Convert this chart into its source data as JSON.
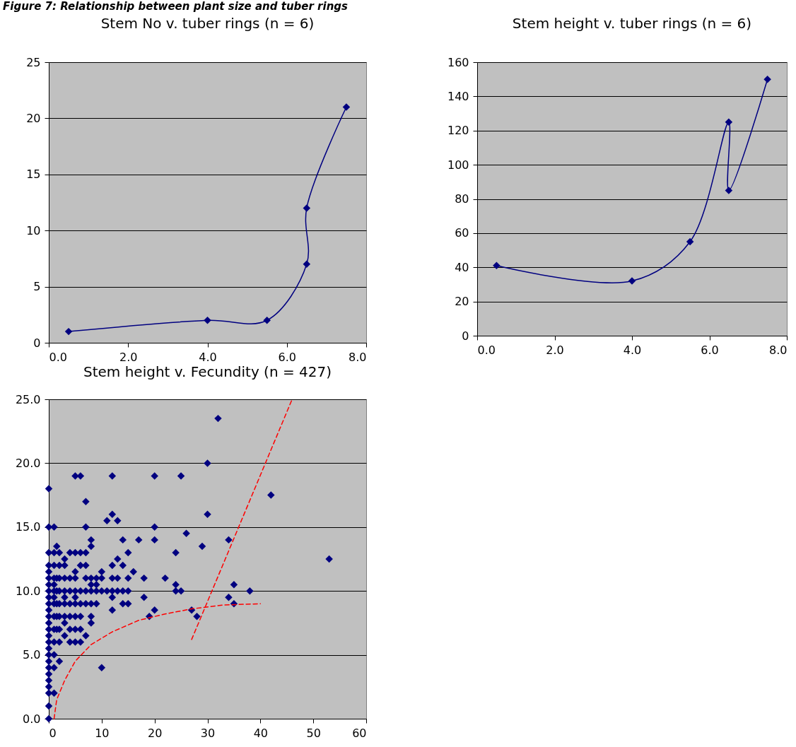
{
  "chart_data": [
    {
      "type": "line",
      "title": "Stem No v. tuber rings (n = 6)",
      "annotations": [
        "Figure 7: Relationship between plant size and tuber rings"
      ],
      "marker": "diamond",
      "grid": "y",
      "x": [
        0.5,
        4,
        5.5,
        6.5,
        6.5,
        7.5
      ],
      "series": [
        {
          "color": "#000080",
          "values": [
            1,
            2,
            2,
            7,
            12,
            21
          ]
        }
      ],
      "xlim": [
        0,
        8
      ],
      "xticks": [
        {
          "value": 0,
          "label": "0.0"
        },
        {
          "value": 2,
          "label": "2.0"
        },
        {
          "value": 4,
          "label": "4.0"
        },
        {
          "value": 6,
          "label": "6.0"
        },
        {
          "value": 8,
          "label": "8.0"
        }
      ],
      "ylim": [
        0,
        25
      ],
      "yticks": [
        0,
        5,
        10,
        15,
        20,
        25
      ]
    },
    {
      "type": "line",
      "title": "Stem height v. tuber rings (n = 6)",
      "marker": "diamond",
      "grid": "y",
      "x": [
        0.5,
        4,
        5.5,
        6.5,
        6.5,
        7.5
      ],
      "series": [
        {
          "color": "#000080",
          "values": [
            41,
            32,
            55,
            125,
            85,
            150
          ]
        }
      ],
      "xlim": [
        0,
        8
      ],
      "xticks": [
        {
          "value": 0,
          "label": "0.0"
        },
        {
          "value": 2,
          "label": "2.0"
        },
        {
          "value": 4,
          "label": "4.0"
        },
        {
          "value": 6,
          "label": "6.0"
        },
        {
          "value": 8,
          "label": "8.0"
        }
      ],
      "ylim": [
        0,
        160
      ],
      "yticks": [
        0,
        20,
        40,
        60,
        80,
        100,
        120,
        140,
        160
      ]
    },
    {
      "type": "scatter",
      "title": "Stem height v. Fecundity (n = 427)",
      "marker": "diamond",
      "grid": "y",
      "series": [
        {
          "color": "#000080",
          "x": [
            0,
            0,
            0,
            0,
            0,
            0,
            0,
            0,
            0,
            0,
            0,
            0,
            0,
            0,
            0,
            0,
            0,
            0,
            0,
            0,
            0,
            0,
            0,
            0,
            0,
            0,
            1,
            1,
            1,
            1,
            1,
            1,
            1,
            1,
            1,
            1,
            1,
            1,
            1,
            1,
            1.5,
            1.5,
            1.5,
            1.5,
            1.5,
            1.5,
            2,
            2,
            2,
            2,
            2,
            2,
            2,
            2,
            2,
            3,
            3,
            3,
            3,
            3,
            3,
            3,
            3,
            3,
            4,
            4,
            4,
            4,
            4,
            4,
            4,
            5,
            5,
            5,
            5,
            5,
            5,
            5,
            5,
            5,
            5,
            6,
            6,
            6,
            6,
            6,
            6,
            6,
            6,
            7,
            7,
            7,
            7,
            7,
            7,
            7,
            7,
            8,
            8,
            8,
            8,
            8,
            8,
            8,
            8,
            9,
            9,
            9,
            9,
            10,
            10,
            10,
            10,
            11,
            11,
            12,
            12,
            12,
            12,
            12,
            12,
            12,
            13,
            13,
            13,
            13,
            14,
            14,
            14,
            14,
            15,
            15,
            15,
            15,
            16,
            17,
            18,
            18,
            19,
            20,
            20,
            20,
            20,
            22,
            24,
            24,
            24,
            25,
            25,
            26,
            27,
            28,
            29,
            30,
            30,
            32,
            34,
            34,
            35,
            35,
            38,
            42,
            53
          ],
          "values": [
            0,
            1,
            2,
            2.5,
            3,
            3.5,
            4,
            4.5,
            5,
            5.5,
            6,
            6.5,
            7,
            7.5,
            8,
            8.5,
            9,
            9.5,
            10,
            10.5,
            11,
            11.5,
            12,
            13,
            15,
            18,
            2,
            4,
            5,
            6,
            7,
            8,
            9,
            9.5,
            10,
            10.5,
            11,
            12,
            13,
            15,
            7,
            8,
            9,
            10,
            11,
            13.5,
            4.5,
            6,
            7,
            8,
            9,
            10,
            11,
            12,
            13,
            6.5,
            7.5,
            8,
            9,
            9.5,
            10,
            11,
            12,
            12.5,
            6,
            7,
            8,
            9,
            10,
            11,
            13,
            6,
            7,
            8,
            9,
            9.5,
            10,
            11,
            11.5,
            13,
            19,
            6,
            7,
            8,
            9,
            10,
            12,
            13,
            19,
            6.5,
            9,
            10,
            11,
            12,
            13,
            15,
            17,
            7.5,
            8,
            9,
            10,
            10.5,
            11,
            13.5,
            14,
            9,
            10,
            10.5,
            11,
            4,
            10,
            11,
            11.5,
            10,
            15.5,
            8.5,
            9.5,
            10,
            11,
            12,
            16,
            19,
            10,
            11,
            12.5,
            15.5,
            9,
            10,
            12,
            14,
            9,
            10,
            11,
            13,
            11.5,
            14,
            9.5,
            11,
            8,
            8.5,
            14,
            15,
            19,
            11,
            10,
            10.5,
            13,
            10,
            19,
            14.5,
            8.5,
            8,
            13.5,
            16,
            20,
            23.5,
            9.5,
            14,
            9,
            10.5,
            10,
            17.5,
            12.5
          ]
        },
        {
          "type": "line",
          "color": "#ff0000",
          "line_style": "dashed",
          "marker": "none",
          "x": [
            1,
            1.5,
            3,
            5,
            8,
            12,
            17,
            22,
            27,
            33,
            40
          ],
          "values": [
            0,
            1.5,
            3,
            4.5,
            5.8,
            6.8,
            7.7,
            8.2,
            8.6,
            8.9,
            9
          ]
        },
        {
          "type": "line",
          "color": "#ff0000",
          "line_style": "dashed",
          "marker": "none",
          "x": [
            27,
            46
          ],
          "values": [
            6.2,
            25
          ]
        }
      ],
      "xlim": [
        0,
        60
      ],
      "xticks": [
        0,
        10,
        20,
        30,
        40,
        50,
        60
      ],
      "ylim": [
        0,
        25
      ],
      "yticks": [
        {
          "value": 0,
          "label": "0.0"
        },
        {
          "value": 5,
          "label": "5.0"
        },
        {
          "value": 10,
          "label": "10.0"
        },
        {
          "value": 15,
          "label": "15.0"
        },
        {
          "value": 20,
          "label": "20.0"
        },
        {
          "value": 25,
          "label": "25.0"
        }
      ]
    }
  ]
}
